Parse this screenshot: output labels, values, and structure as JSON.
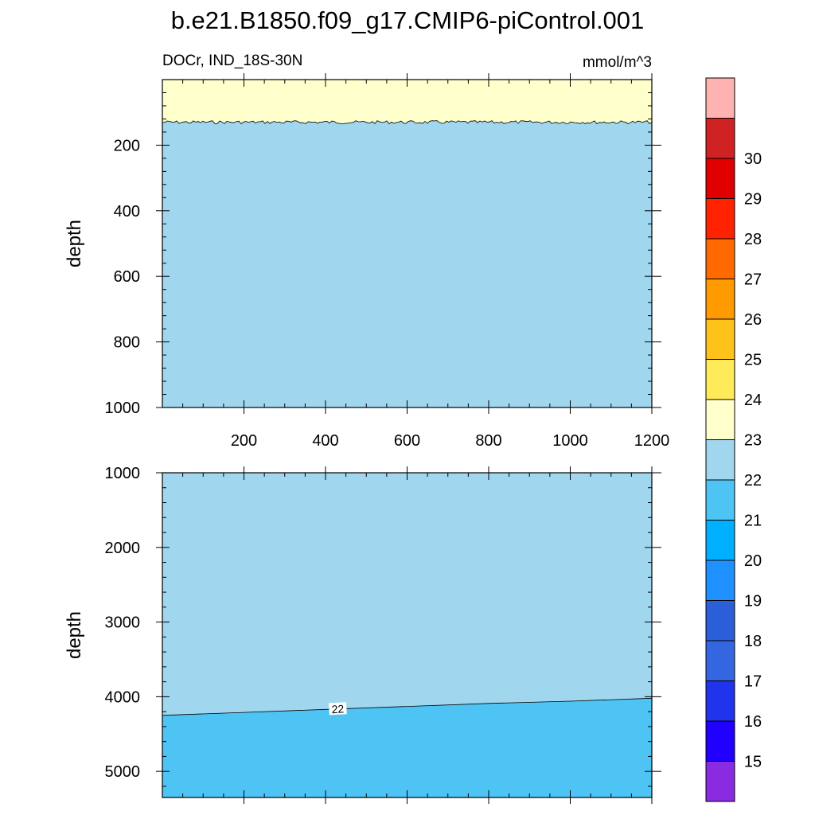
{
  "title": "b.e21.B1850.f09_g17.CMIP6-piControl.001",
  "chart_data": {
    "type": "heatmap",
    "title": "b.e21.B1850.f09_g17.CMIP6-piControl.001",
    "left_string": "DOCr, IND_18S-30N",
    "right_string": "mmol/m^3",
    "xlabel": "",
    "ylabel": "depth",
    "xlim": [
      0,
      1200
    ],
    "x_ticks": [
      200,
      400,
      600,
      800,
      1000,
      1200
    ],
    "panels": [
      {
        "name": "upper",
        "ylim": [
          0,
          1000
        ],
        "y_ticks": [
          200,
          400,
          600,
          800,
          1000
        ],
        "y_inverted": true,
        "regions": [
          {
            "range": "23-24",
            "from_depth": 0,
            "to_depth": 130
          },
          {
            "range": "22-23",
            "from_depth": 130,
            "to_depth": 1000
          }
        ],
        "contour_depth_23": 130
      },
      {
        "name": "lower",
        "ylim": [
          1000,
          5350
        ],
        "y_ticks": [
          1000,
          2000,
          3000,
          4000,
          5000
        ],
        "y_inverted": true,
        "regions": [
          {
            "range": "22-23",
            "from_depth": 1000,
            "to_depth": "contour"
          },
          {
            "range": "21-22",
            "from_depth": "contour",
            "to_depth": 5350
          }
        ],
        "contour_22": {
          "x": [
            0,
            200,
            400,
            600,
            800,
            1000,
            1200
          ],
          "depth": [
            4250,
            4210,
            4170,
            4130,
            4090,
            4060,
            4020
          ]
        },
        "contour_label": "22",
        "contour_label_x": 430
      }
    ],
    "colorbar": {
      "levels": [
        15,
        16,
        17,
        18,
        19,
        20,
        21,
        22,
        23,
        24,
        25,
        26,
        27,
        28,
        29,
        30
      ],
      "colors": [
        "#8a2be2",
        "#2200ff",
        "#2233ee",
        "#3366e0",
        "#2a5fd8",
        "#1e90ff",
        "#00b0ff",
        "#4ec4f4",
        "#a0d6ee",
        "#ffffcc",
        "#ffeb5a",
        "#ffc21a",
        "#ff9a00",
        "#ff6a00",
        "#ff2200",
        "#e00000",
        "#d02222",
        "#ffb2b2"
      ]
    }
  }
}
